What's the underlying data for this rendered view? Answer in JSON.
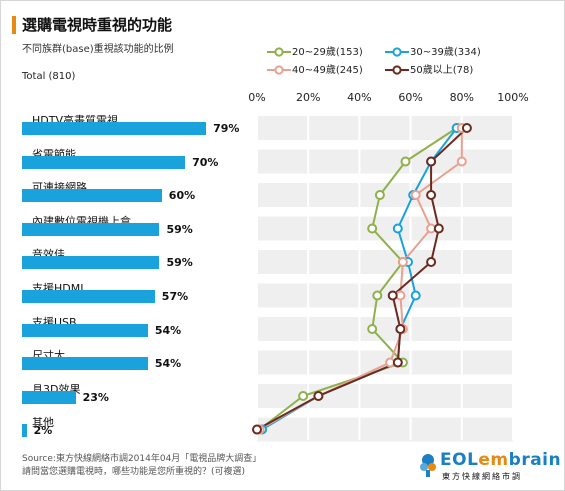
{
  "header": {
    "title": "選購電視時重視的功能",
    "subtitle": "不同族群(base)重視該功能的比例",
    "total": "Total (810)"
  },
  "chart_data": {
    "type": "bar",
    "categories": [
      "HDTV高畫質電視",
      "省電節能",
      "可連接網路",
      "內建數位電視機上盒",
      "音效佳",
      "支援HDMI",
      "支援USB",
      "尺寸大",
      "具3D效果",
      "其他"
    ],
    "total": {
      "values": [
        79,
        70,
        60,
        59,
        59,
        57,
        54,
        54,
        23,
        2
      ],
      "labels": [
        "79%",
        "70%",
        "60%",
        "59%",
        "59%",
        "57%",
        "54%",
        "54%",
        "23%",
        "2%"
      ]
    },
    "x_axis": {
      "ticks": [
        0,
        20,
        40,
        60,
        80,
        100
      ],
      "tick_labels": [
        "0%",
        "20%",
        "40%",
        "60%",
        "80%",
        "100%"
      ],
      "xlim": [
        0,
        100
      ],
      "grid": true
    },
    "series": [
      {
        "name": "20~29歲(153)",
        "color": "#8fb04a",
        "values": [
          78,
          58,
          48,
          45,
          57,
          47,
          45,
          57,
          18,
          1
        ]
      },
      {
        "name": "30~39歲(334)",
        "color": "#1aa2dc",
        "values": [
          78,
          68,
          61,
          55,
          59,
          62,
          56,
          55,
          24,
          2
        ]
      },
      {
        "name": "40~49歲(245)",
        "color": "#e8a090",
        "values": [
          80,
          80,
          62,
          68,
          57,
          56,
          57,
          52,
          24,
          1
        ]
      },
      {
        "name": "50歲以上(78)",
        "color": "#6b2a1e",
        "values": [
          82,
          68,
          68,
          71,
          68,
          53,
          56,
          55,
          24,
          0
        ]
      }
    ],
    "legend_position": "top-right"
  },
  "footer": {
    "source": "Source:東方快線網絡市調2014年04月「電視品牌大調查」",
    "question": "請問當您選購電視時，哪些功能是您所重視的？(可複選)"
  },
  "logo": {
    "word_main": "EOL",
    "word_em": "em",
    "word_end": "brain",
    "sub": "東方快線網絡市調"
  }
}
